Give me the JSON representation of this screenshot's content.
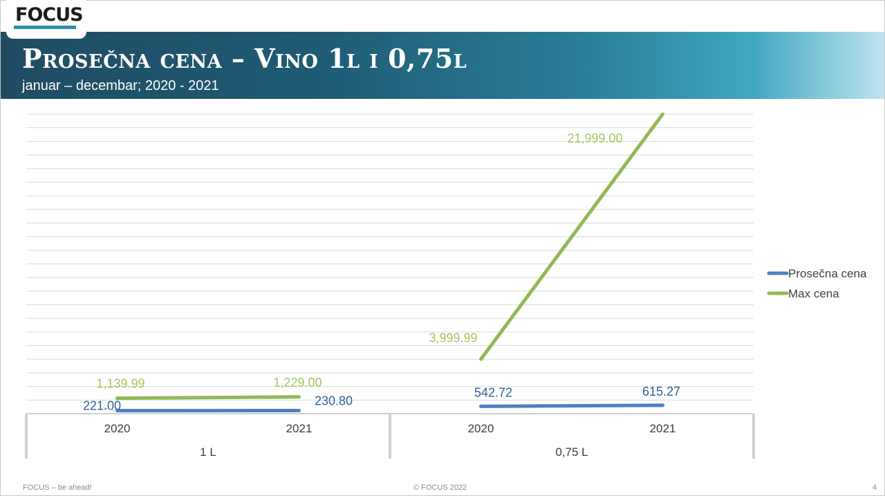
{
  "header": {
    "logo_text": "FOCUS",
    "title": "Prosečna cena – Vino 1l i 0,75l",
    "subtitle": "januar – decembar; 2020 - 2021"
  },
  "footer": {
    "left": "FOCUS – be ahead!",
    "center": "© FOCUS 2022",
    "page_number": "4"
  },
  "colors": {
    "prosecna": "#4f7fc1",
    "max": "#92b854",
    "prosecna_label": "#2e5f9a",
    "max_label": "#a3c55e"
  },
  "chart_data": {
    "type": "line",
    "groups": [
      {
        "label": "1 L",
        "x": [
          "2020",
          "2021"
        ]
      },
      {
        "label": "0,75 L",
        "x": [
          "2020",
          "2021"
        ]
      }
    ],
    "series": [
      {
        "name": "Prosečna cena",
        "values": [
          [
            221.0,
            230.8
          ],
          [
            542.72,
            615.27
          ]
        ],
        "labels": [
          [
            "221.00",
            "230.80"
          ],
          [
            "542.72",
            "615.27"
          ]
        ]
      },
      {
        "name": "Max cena",
        "values": [
          [
            1139.99,
            1229.0
          ],
          [
            3999.99,
            21999.0
          ]
        ],
        "labels": [
          [
            "1,139.99",
            "1,229.00"
          ],
          [
            "3,999.99",
            "21,999.00"
          ]
        ]
      }
    ],
    "legend_position": "right",
    "grid": true
  }
}
